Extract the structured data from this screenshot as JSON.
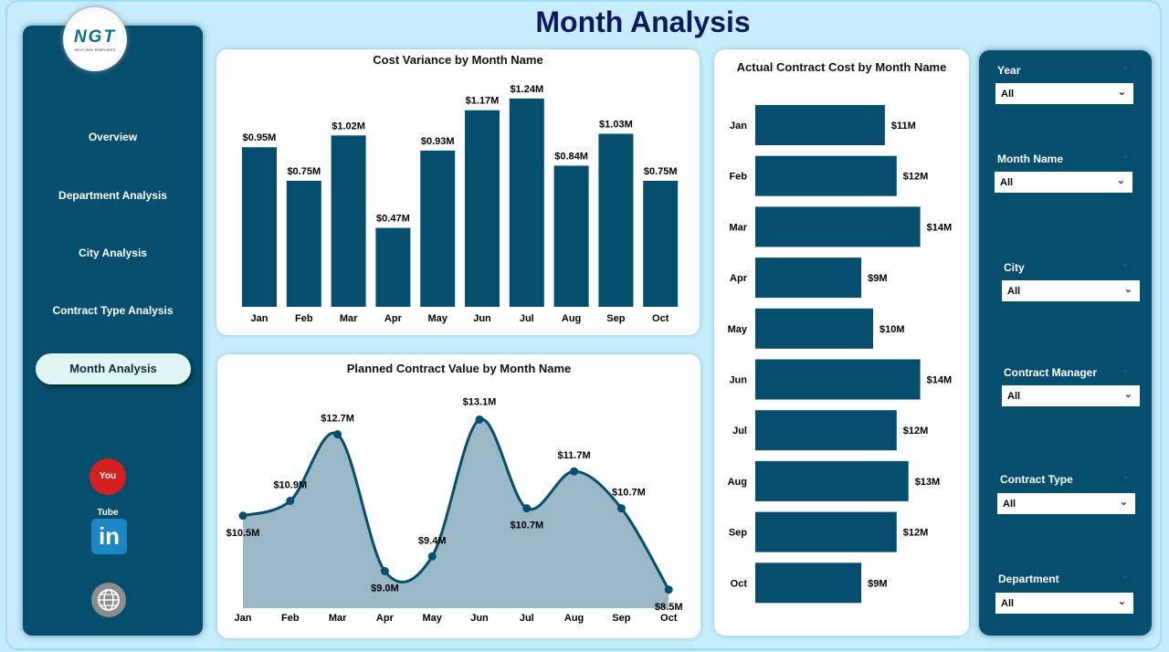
{
  "title": "Month Analysis",
  "logo": {
    "text": "NGT",
    "sub": "NEXT GEN TEMPLATES"
  },
  "nav": [
    {
      "label": "Overview"
    },
    {
      "label": "Department Analysis"
    },
    {
      "label": "City Analysis"
    },
    {
      "label": "Contract Type Analysis"
    },
    {
      "label": "Month Analysis",
      "active": true
    }
  ],
  "social": [
    "youtube-icon",
    "linkedin-icon",
    "website-globe-icon"
  ],
  "social_text": {
    "youtube": "You Tube",
    "linkedin": "in"
  },
  "slicers": [
    {
      "label": "Year",
      "value": "All"
    },
    {
      "label": "Month Name",
      "value": "All"
    },
    {
      "label": "City",
      "value": "All"
    },
    {
      "label": "Contract Manager",
      "value": "All"
    },
    {
      "label": "Contract Type",
      "value": "All"
    },
    {
      "label": "Department",
      "value": "All"
    }
  ],
  "colors": {
    "primary": "#054e6d",
    "background": "#c7edfc",
    "area": "#9ab8c6"
  },
  "chart_data": [
    {
      "type": "bar",
      "title": "Cost Variance by Month Name",
      "categories": [
        "Jan",
        "Feb",
        "Mar",
        "Apr",
        "May",
        "Jun",
        "Jul",
        "Aug",
        "Sep",
        "Oct"
      ],
      "values": [
        0.95,
        0.75,
        1.02,
        0.47,
        0.93,
        1.17,
        1.24,
        0.84,
        1.03,
        0.75
      ],
      "labels": [
        "$0.95M",
        "$0.75M",
        "$1.02M",
        "$0.47M",
        "$0.93M",
        "$1.17M",
        "$1.24M",
        "$0.84M",
        "$1.03M",
        "$0.75M"
      ],
      "unit": "M"
    },
    {
      "type": "area",
      "title": "Planned Contract Value by Month Name",
      "categories": [
        "Jan",
        "Feb",
        "Mar",
        "Apr",
        "May",
        "Jun",
        "Jul",
        "Aug",
        "Sep",
        "Oct"
      ],
      "values": [
        10.5,
        10.9,
        12.7,
        9.0,
        9.4,
        13.1,
        10.7,
        11.7,
        10.7,
        8.5
      ],
      "labels": [
        "$10.5M",
        "$10.9M",
        "$12.7M",
        "$9.0M",
        "$9.4M",
        "$13.1M",
        "$10.7M",
        "$11.7M",
        "$10.7M",
        "$8.5M"
      ]
    },
    {
      "type": "bar",
      "orientation": "horizontal",
      "title": "Actual Contract Cost by Month Name",
      "categories": [
        "Jan",
        "Feb",
        "Mar",
        "Apr",
        "May",
        "Jun",
        "Jul",
        "Aug",
        "Sep",
        "Oct"
      ],
      "values": [
        11,
        12,
        14,
        9,
        10,
        14,
        12,
        13,
        12,
        9
      ],
      "labels": [
        "$11M",
        "$12M",
        "$14M",
        "$9M",
        "$10M",
        "$14M",
        "$12M",
        "$13M",
        "$12M",
        "$9M"
      ]
    }
  ]
}
